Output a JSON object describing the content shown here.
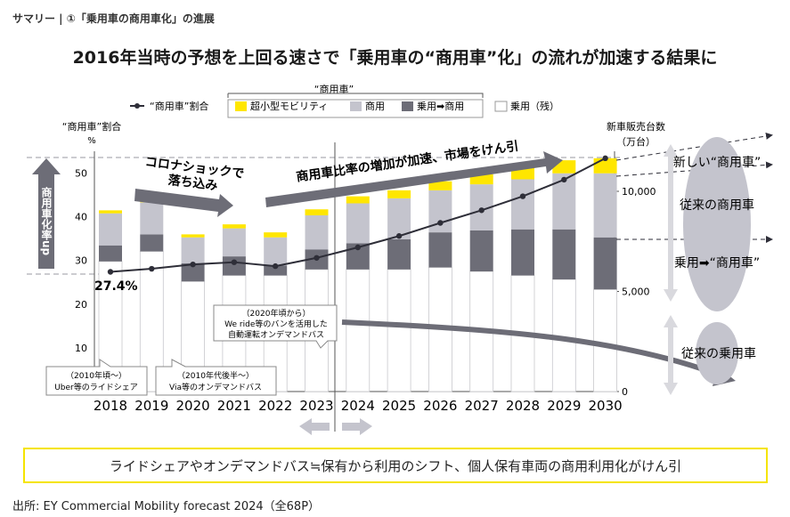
{
  "breadcrumb": "サマリー | ①「乗用車の商用車化」の進展",
  "headline": "2016年当時の予想を上回る速さで「乗用車の“商用車”化」の流れが加速する結果に",
  "footer_message": "ライドシェアやオンデマンドバス≒保有から利用のシフト、個人保有車両の商用利用化がけん引",
  "source": "出所: EY Commercial Mobility forecast 2024（全68P）",
  "colors": {
    "micro": "#ffe600",
    "commercial": "#c4c4cd",
    "converted": "#6d6d77",
    "passenger": "#ffffff",
    "line": "#2e2e38",
    "arrow": "#6d6d77",
    "oval": "#c4c4cd",
    "light_arrow": "#d9d9de",
    "highlight_border": "#f5e400"
  },
  "chart_data": {
    "type": "bar",
    "categories": [
      "2018",
      "2019",
      "2020",
      "2021",
      "2022",
      "2023",
      "2024",
      "2025",
      "2026",
      "2027",
      "2028",
      "2029",
      "2030"
    ],
    "series": [
      {
        "name": "乗用（残）",
        "values": [
          6500,
          7000,
          5500,
          5800,
          5800,
          6100,
          6100,
          6100,
          6200,
          6000,
          5800,
          5600,
          5100
        ]
      },
      {
        "name": "乗用➡商用",
        "values": [
          800,
          850,
          900,
          950,
          500,
          1000,
          1300,
          1500,
          1750,
          2050,
          2300,
          2500,
          2600
        ]
      },
      {
        "name": "商用",
        "values": [
          1600,
          1600,
          1300,
          1400,
          1400,
          1700,
          2000,
          2050,
          2100,
          2300,
          2500,
          2800,
          3200
        ]
      },
      {
        "name": "超小型モビリティ",
        "values": [
          150,
          150,
          150,
          200,
          250,
          300,
          350,
          400,
          450,
          500,
          600,
          650,
          750
        ]
      }
    ],
    "line_series": {
      "name": "“商用車”割合",
      "values": [
        27.4,
        28.1,
        29.1,
        29.6,
        28.7,
        30.6,
        33.0,
        35.6,
        38.6,
        41.5,
        44.7,
        48.5,
        53.4
      ]
    },
    "ylabel_left": "“商用車”割合",
    "ylabel_left_unit": "%",
    "ylim_left": [
      0,
      55
    ],
    "yticks_left": [
      0,
      10,
      20,
      30,
      40,
      50
    ],
    "ylabel_right": "新車販売台数",
    "ylabel_right_unit": "（万台）",
    "ylim_right": [
      0,
      12000
    ],
    "yticks_right": [
      0,
      5000,
      10000
    ],
    "yticks_right_labels": [
      "0",
      "5,000",
      "10,000"
    ],
    "legend_group_label": "“商用車”",
    "legend_line_label": "“商用車”割合",
    "legend_position": "top",
    "annotations": {
      "start_value_label": "27.4%",
      "vertical_label": "商用車化率up",
      "corona_line1": "コロナショックで",
      "corona_line2": "落ち込み",
      "growth_label": "商用車比率の増加が加速、市場をけん引",
      "callout_2018": [
        "（2010年頃～）",
        "Uber等のライドシェア"
      ],
      "callout_2021": [
        "（2010年代後半～）",
        "Via等のオンデマンドバス"
      ],
      "callout_2023": [
        "（2020年頃から）",
        "We ride等のバンを活用した",
        "自動運転オンデマンドバス"
      ],
      "side_new_commercial": "新しい“商用車”",
      "side_existing_commercial": "従来の商用車",
      "side_converted": "乗用➡“商用車”",
      "side_existing_passenger": "従来の乗用車"
    }
  }
}
